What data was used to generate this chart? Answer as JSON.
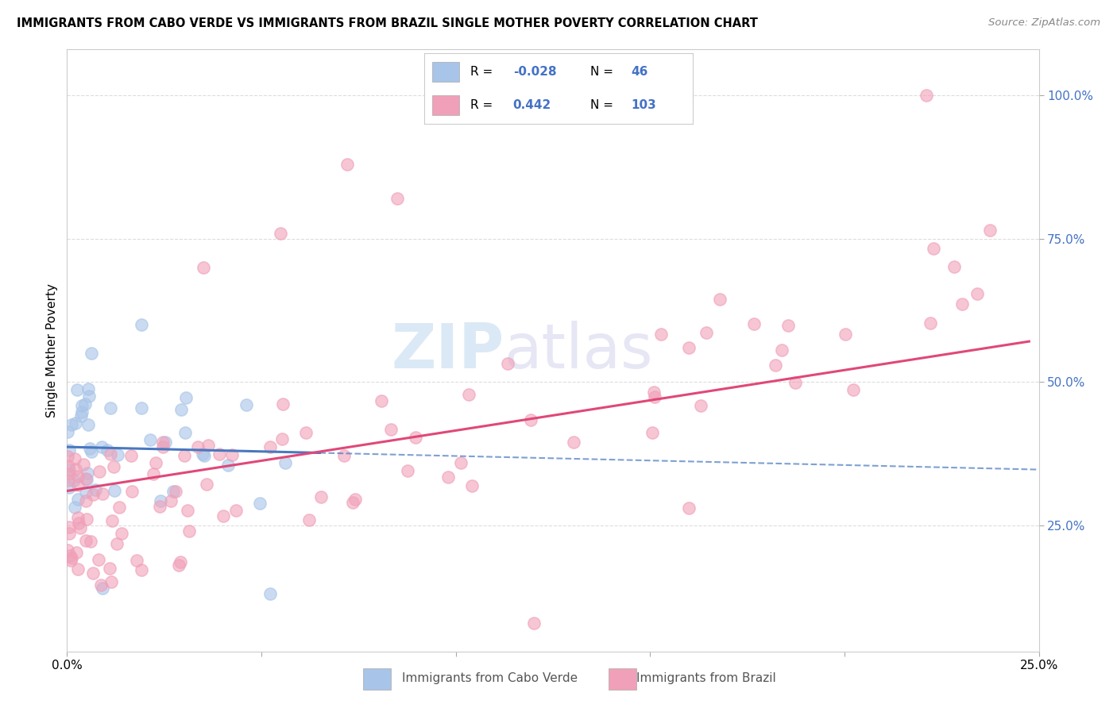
{
  "title": "IMMIGRANTS FROM CABO VERDE VS IMMIGRANTS FROM BRAZIL SINGLE MOTHER POVERTY CORRELATION CHART",
  "source": "Source: ZipAtlas.com",
  "ylabel": "Single Mother Poverty",
  "xmin": 0.0,
  "xmax": 0.25,
  "ymin": 0.03,
  "ymax": 1.08,
  "cabo_verde_color": "#a8c4e8",
  "brazil_color": "#f0a0b8",
  "cabo_verde_R": -0.028,
  "cabo_verde_N": 46,
  "brazil_R": 0.442,
  "brazil_N": 103,
  "cabo_verde_line_color": "#4878c0",
  "brazil_line_color": "#e04878",
  "watermark_zip": "ZIP",
  "watermark_atlas": "atlas",
  "y_right_color": "#4472c4",
  "legend_border_color": "#cccccc",
  "grid_color": "#dddddd"
}
